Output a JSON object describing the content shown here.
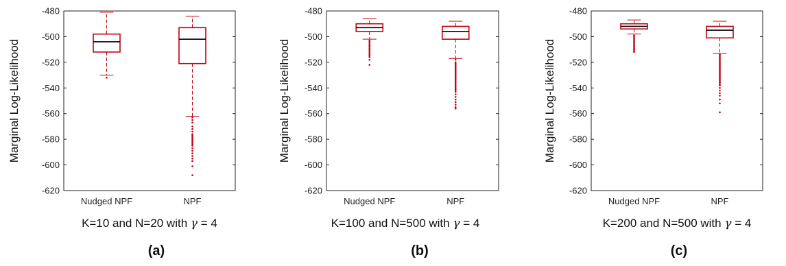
{
  "chart_data": [
    {
      "type": "box",
      "ylabel": "Marginal Log-Likelihood",
      "ylim": [
        -620,
        -480
      ],
      "yticks": [
        "-480",
        "-500",
        "-520",
        "-540",
        "-560",
        "-580",
        "-600",
        "-620"
      ],
      "categories": [
        "Nudged NPF",
        "NPF"
      ],
      "caption_prefix": "K=10 and N=20 with ",
      "gamma_symbol": "γ",
      "caption_suffix": " = 4",
      "panel_label": "(a)",
      "color": "#c0000e",
      "boxes": [
        {
          "q1": -512,
          "median": -504,
          "q3": -498,
          "wlow": -530,
          "whigh": -481,
          "outliers": [
            -532
          ]
        },
        {
          "q1": -521,
          "median": -502,
          "q3": -493,
          "wlow": -562,
          "whigh": -484,
          "outliers": [
            -563,
            -565,
            -567,
            -570,
            -572,
            -574,
            -576,
            -577,
            -578,
            -579,
            -580,
            -581,
            -582,
            -583,
            -584,
            -585,
            -587,
            -589,
            -591,
            -593,
            -595,
            -597,
            -601,
            -608
          ]
        }
      ]
    },
    {
      "type": "box",
      "ylabel": "Marginal Log-Likelihood",
      "ylim": [
        -620,
        -480
      ],
      "yticks": [
        "-480",
        "-500",
        "-520",
        "-540",
        "-560",
        "-580",
        "-600",
        "-620"
      ],
      "categories": [
        "Nudged NPF",
        "NPF"
      ],
      "caption_prefix": "K=100 and N=500 with ",
      "gamma_symbol": "γ",
      "caption_suffix": " = 4",
      "panel_label": "(b)",
      "color": "#c0000e",
      "boxes": [
        {
          "q1": -496,
          "median": -493,
          "q3": -490,
          "wlow": -502,
          "whigh": -486,
          "outliers": [
            -503,
            -504,
            -505,
            -506,
            -507,
            -508,
            -509,
            -510,
            -511,
            -512,
            -513,
            -514,
            -515,
            -516,
            -518,
            -522
          ]
        },
        {
          "q1": -502,
          "median": -496,
          "q3": -492,
          "wlow": -517,
          "whigh": -488,
          "outliers": [
            -518,
            -520,
            -521,
            -522,
            -523,
            -524,
            -525,
            -526,
            -527,
            -528,
            -529,
            -530,
            -531,
            -532,
            -533,
            -534,
            -535,
            -536,
            -537,
            -538,
            -539,
            -540,
            -541,
            -542,
            -543,
            -545,
            -547,
            -549,
            -551,
            -553,
            -555,
            -556
          ]
        }
      ]
    },
    {
      "type": "box",
      "ylabel": "Marginal Log-Likelihood",
      "ylim": [
        -620,
        -480
      ],
      "yticks": [
        "-480",
        "-500",
        "-520",
        "-540",
        "-560",
        "-580",
        "-600",
        "-620"
      ],
      "categories": [
        "Nudged NPF",
        "NPF"
      ],
      "caption_prefix": "K=200 and N=500 with ",
      "gamma_symbol": "γ",
      "caption_suffix": " = 4",
      "panel_label": "(c)",
      "color": "#c0000e",
      "boxes": [
        {
          "q1": -494,
          "median": -492,
          "q3": -490,
          "wlow": -498,
          "whigh": -487,
          "outliers": [
            -499,
            -500,
            -501,
            -502,
            -503,
            -504,
            -505,
            -506,
            -507,
            -508,
            -509,
            -510,
            -511,
            -512
          ]
        },
        {
          "q1": -501,
          "median": -495,
          "q3": -492,
          "wlow": -513,
          "whigh": -488,
          "outliers": [
            -514,
            -515,
            -516,
            -517,
            -518,
            -519,
            -520,
            -521,
            -522,
            -523,
            -524,
            -525,
            -526,
            -527,
            -528,
            -529,
            -530,
            -531,
            -532,
            -533,
            -534,
            -535,
            -536,
            -537,
            -538,
            -540,
            -542,
            -544,
            -546,
            -549,
            -552,
            -559
          ]
        }
      ]
    }
  ]
}
